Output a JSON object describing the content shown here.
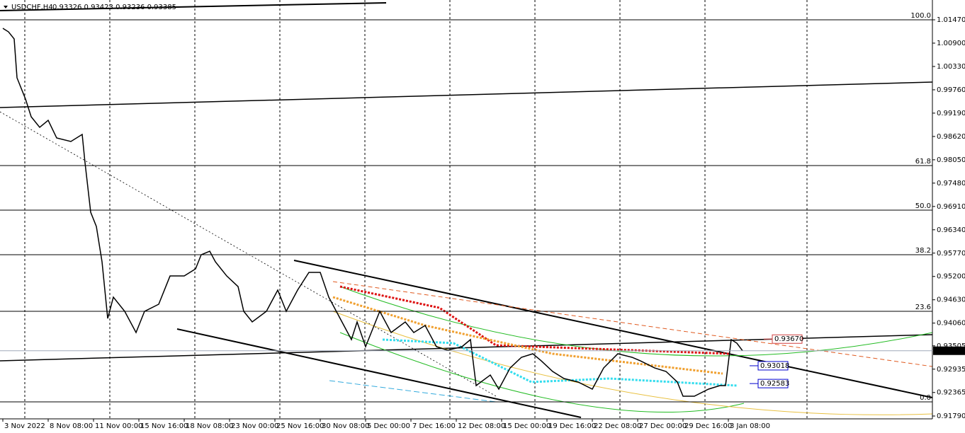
{
  "chart_data": {
    "type": "line",
    "header": {
      "symbol": "USDCHF,H4",
      "ohlc": "0.93326 0.93423 0.93236 0.93385"
    },
    "x": [
      1,
      3,
      5,
      6,
      9,
      11,
      14,
      17,
      20,
      25,
      29,
      30,
      32,
      34,
      36,
      38,
      40,
      44,
      48,
      51,
      56,
      60,
      65,
      69,
      71,
      74,
      76,
      80,
      84,
      86,
      89,
      94,
      98,
      101,
      105,
      109,
      113,
      116,
      120,
      124,
      126,
      129,
      134,
      138,
      143,
      146,
      150,
      154,
      158,
      163,
      166,
      168,
      173,
      176,
      180,
      184,
      188,
      191,
      195,
      199,
      204,
      209,
      213,
      218,
      223,
      226,
      231,
      235,
      239,
      241,
      245,
      250,
      254,
      256,
      258,
      260,
      262
    ],
    "series": [
      {
        "color": "#000000",
        "values": [
          1.01263,
          1.01176,
          1.01003,
          1.00053,
          0.99534,
          0.99102,
          0.98843,
          0.99015,
          0.98583,
          0.98497,
          0.9867,
          0.97978,
          0.96768,
          0.96422,
          0.95558,
          0.94175,
          0.94694,
          0.94348,
          0.9383,
          0.94348,
          0.94521,
          0.95212,
          0.95212,
          0.95385,
          0.95731,
          0.95817,
          0.95558,
          0.95212,
          0.94953,
          0.94348,
          0.94089,
          0.94348,
          0.94867,
          0.94348,
          0.94867,
          0.95299,
          0.95299,
          0.94694,
          0.94175,
          0.93657,
          0.94089,
          0.93484,
          0.94348,
          0.9383,
          0.94089,
          0.9383,
          0.94002,
          0.93484,
          0.93397,
          0.93484,
          0.93657,
          0.92533,
          0.92792,
          0.92447,
          0.92965,
          0.93225,
          0.93311,
          0.93138,
          0.92879,
          0.92706,
          0.9262,
          0.92447,
          0.92965,
          0.93311,
          0.93225,
          0.93138,
          0.92965,
          0.92879,
          0.9262,
          0.92274,
          0.92274,
          0.92447,
          0.92533,
          0.92533,
          0.93657,
          0.9357,
          0.93385
        ]
      }
    ],
    "xlim": [
      0,
      329
    ],
    "xticks": [
      {
        "value": 1,
        "label": "3 Nov 2022"
      },
      {
        "value": 17,
        "label": "8 Nov 08:00"
      },
      {
        "value": 33,
        "label": "11 Nov 00:00"
      },
      {
        "value": 49,
        "label": "15 Nov 16:00"
      },
      {
        "value": 65,
        "label": "18 Nov 08:00"
      },
      {
        "value": 81,
        "label": "23 Nov 00:00"
      },
      {
        "value": 97,
        "label": "25 Nov 16:00"
      },
      {
        "value": 113,
        "label": "30 Nov 08:00"
      },
      {
        "value": 129,
        "label": "5 Dec 00:00"
      },
      {
        "value": 145,
        "label": "7 Dec 16:00"
      },
      {
        "value": 161,
        "label": "12 Dec 08:00"
      },
      {
        "value": 177,
        "label": "15 Dec 00:00"
      },
      {
        "value": 193,
        "label": "19 Dec 16:00"
      },
      {
        "value": 209,
        "label": "22 Dec 08:00"
      },
      {
        "value": 225,
        "label": "27 Dec 00:00"
      },
      {
        "value": 241,
        "label": "29 Dec 16:00"
      },
      {
        "value": 257,
        "label": "3 Jan 08:00"
      }
    ],
    "ylim": [
      0.91721,
      1.01954
    ],
    "yticks": [
      {
        "value": 1.0147,
        "label": "1.01470"
      },
      {
        "value": 1.009,
        "label": "1.00900"
      },
      {
        "value": 1.0033,
        "label": "1.00330"
      },
      {
        "value": 0.9976,
        "label": "0.99760"
      },
      {
        "value": 0.9919,
        "label": "0.99190"
      },
      {
        "value": 0.9862,
        "label": "0.98620"
      },
      {
        "value": 0.9805,
        "label": "0.98050"
      },
      {
        "value": 0.9748,
        "label": "0.97480"
      },
      {
        "value": 0.9691,
        "label": "0.96910"
      },
      {
        "value": 0.9634,
        "label": "0.96340"
      },
      {
        "value": 0.9577,
        "label": "0.95770"
      },
      {
        "value": 0.952,
        "label": "0.95200"
      },
      {
        "value": 0.9463,
        "label": "0.94630"
      },
      {
        "value": 0.9406,
        "label": "0.94060"
      },
      {
        "value": 0.93505,
        "label": "0.93505"
      },
      {
        "value": 0.92935,
        "label": "0.92935"
      },
      {
        "value": 0.92365,
        "label": "0.92365"
      },
      {
        "value": 0.9179,
        "label": "0.91790"
      }
    ],
    "fib_levels": [
      {
        "label": "100.0",
        "value": 1.0147
      },
      {
        "label": "61.8",
        "value": 0.97909
      },
      {
        "label": "50.0",
        "value": 0.9682
      },
      {
        "label": "38.2",
        "value": 0.95731
      },
      {
        "label": "23.6",
        "value": 0.94348
      },
      {
        "label": "0.0",
        "value": 0.92135
      }
    ],
    "price_markers": [
      {
        "value": 0.9367,
        "label": "0.93670",
        "color": "#d04040"
      },
      {
        "value": 0.93018,
        "label": "0.93018",
        "color": "#0000cc"
      },
      {
        "value": 0.92583,
        "label": "0.92583",
        "color": "#0000cc"
      }
    ],
    "current_price": {
      "value": 0.93385,
      "label": "0.93385"
    }
  }
}
